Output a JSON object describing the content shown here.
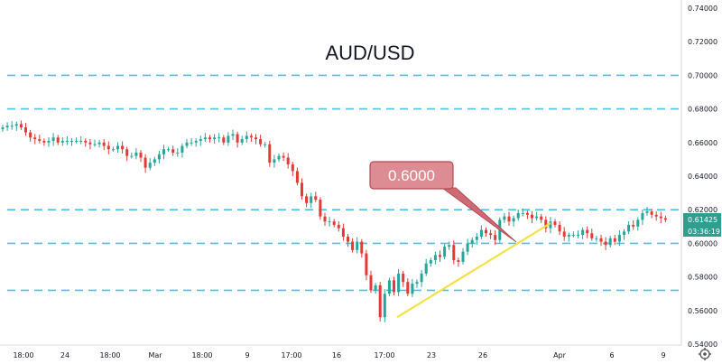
{
  "chart_data": {
    "type": "candlestick",
    "title": "AUD/USD",
    "ylim": [
      0.54,
      0.745
    ],
    "y_ticks": [
      "0.74000",
      "0.72000",
      "0.70000",
      "0.68000",
      "0.66000",
      "0.64000",
      "0.62000",
      "0.60000",
      "0.58000",
      "0.56000",
      "0.54000"
    ],
    "x_tick_labels": [
      "18:00",
      "24",
      "18:00",
      "Mar",
      "18:00",
      "9",
      "17:00",
      "16",
      "17:00",
      "23",
      "26",
      "Apr",
      "6",
      "9"
    ],
    "current_price_label": "0.61425",
    "countdown_label": "03:36:19",
    "horizontal_levels": [
      0.7,
      0.68,
      0.62,
      0.6,
      0.572
    ],
    "trendline": {
      "from_price": 0.556,
      "to_price": 0.612
    },
    "callout_text": "0.6000",
    "closes": [
      0.669,
      0.67,
      0.67,
      0.671,
      0.669,
      0.666,
      0.663,
      0.662,
      0.661,
      0.66,
      0.661,
      0.663,
      0.66,
      0.661,
      0.661,
      0.661,
      0.661,
      0.661,
      0.66,
      0.659,
      0.659,
      0.66,
      0.658,
      0.656,
      0.656,
      0.658,
      0.656,
      0.652,
      0.652,
      0.654,
      0.651,
      0.645,
      0.648,
      0.65,
      0.653,
      0.656,
      0.656,
      0.654,
      0.654,
      0.658,
      0.66,
      0.66,
      0.661,
      0.662,
      0.663,
      0.662,
      0.663,
      0.663,
      0.66,
      0.664,
      0.665,
      0.66,
      0.662,
      0.664,
      0.663,
      0.662,
      0.659,
      0.659,
      0.648,
      0.65,
      0.652,
      0.651,
      0.647,
      0.643,
      0.636,
      0.628,
      0.624,
      0.628,
      0.626,
      0.616,
      0.613,
      0.613,
      0.611,
      0.609,
      0.604,
      0.601,
      0.596,
      0.601,
      0.594,
      0.581,
      0.572,
      0.575,
      0.556,
      0.57,
      0.578,
      0.571,
      0.582,
      0.577,
      0.57,
      0.576,
      0.577,
      0.582,
      0.588,
      0.59,
      0.593,
      0.592,
      0.598,
      0.599,
      0.59,
      0.589,
      0.595,
      0.6,
      0.602,
      0.604,
      0.608,
      0.606,
      0.605,
      0.602,
      0.614,
      0.616,
      0.613,
      0.615,
      0.618,
      0.618,
      0.617,
      0.615,
      0.616,
      0.614,
      0.609,
      0.613,
      0.611,
      0.607,
      0.604,
      0.605,
      0.605,
      0.605,
      0.608,
      0.606,
      0.603,
      0.603,
      0.601,
      0.599,
      0.603,
      0.601,
      0.605,
      0.607,
      0.611,
      0.61,
      0.614,
      0.618,
      0.619,
      0.617,
      0.616,
      0.615,
      0.614
    ]
  }
}
